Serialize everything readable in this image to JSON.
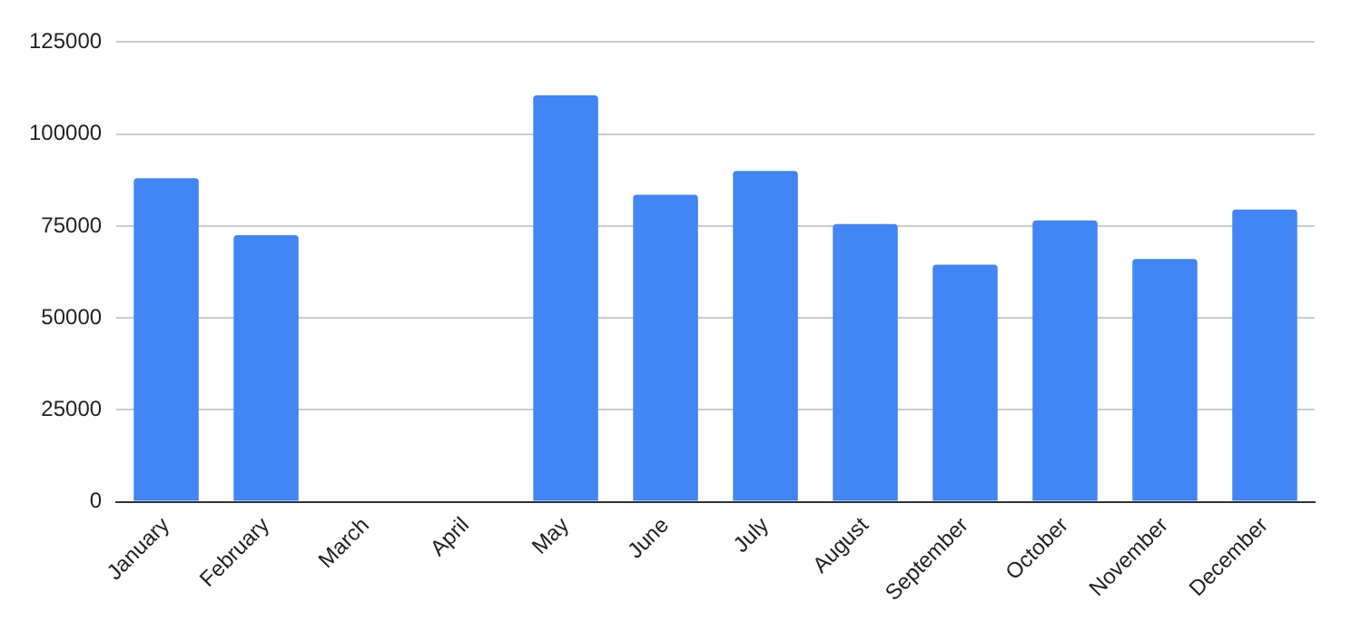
{
  "chart_data": {
    "type": "bar",
    "categories": [
      "January",
      "February",
      "March",
      "April",
      "May",
      "June",
      "July",
      "August",
      "September",
      "October",
      "November",
      "December"
    ],
    "values": [
      88000,
      72500,
      null,
      null,
      110500,
      83500,
      90000,
      75500,
      64500,
      76500,
      66000,
      79500
    ],
    "color": "#4285f4",
    "ylim": [
      0,
      125000
    ],
    "yticks": [
      0,
      25000,
      50000,
      75000,
      100000,
      125000
    ],
    "grid": "y",
    "legend": false
  }
}
